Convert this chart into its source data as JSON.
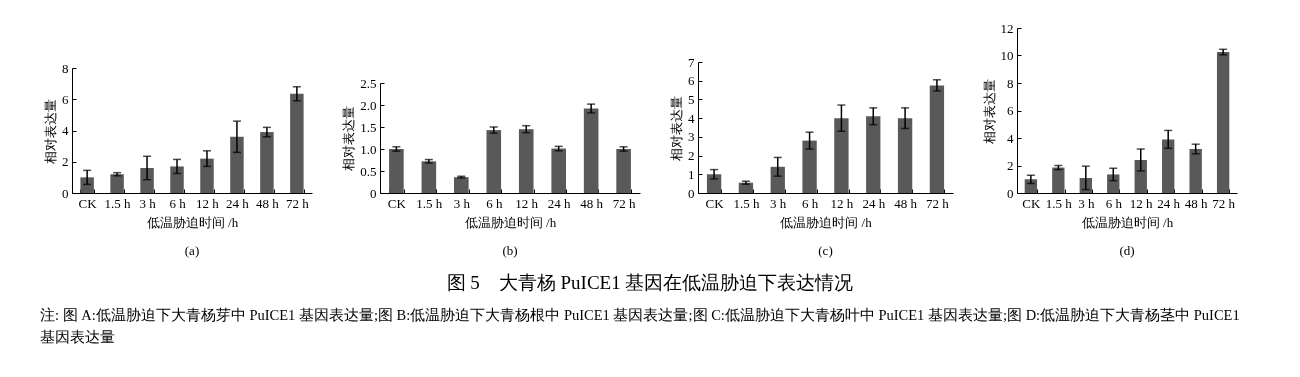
{
  "chart_data": [
    {
      "type": "bar",
      "title": "(a)",
      "xlabel": "低温胁迫时间 /h",
      "ylabel": "相对表达量",
      "categories": [
        "CK",
        "1.5 h",
        "3 h",
        "6 h",
        "12 h",
        "24 h",
        "48 h",
        "72 h"
      ],
      "values": [
        1.0,
        1.2,
        1.6,
        1.7,
        2.2,
        3.6,
        3.9,
        6.35
      ],
      "errors": [
        0.45,
        0.1,
        0.75,
        0.45,
        0.5,
        1.0,
        0.3,
        0.45
      ],
      "color": "#595959",
      "ylim": [
        0,
        8
      ],
      "yticks": [
        0,
        2,
        4,
        6,
        8
      ],
      "grid": false,
      "annotations": [
        "图 5　大青杨 PuICE1 基因在低温胁迫下表达情况",
        "注: 图 A:低温胁迫下大青杨芽中 PuICE1 基因表达量;图 B:低温胁迫下大青杨根中 PuICE1 基因表达量;图 C:低温胁迫下大青杨叶中 PuICE1 基因表达量;图 D:低温胁迫下大青杨茎中 PuICE1 基因表达量"
      ]
    },
    {
      "type": "bar",
      "title": "(b)",
      "xlabel": "低温胁迫时间 /h",
      "ylabel": "相对表达量",
      "categories": [
        "CK",
        "1.5 h",
        "3 h",
        "6 h",
        "12 h",
        "24 h",
        "48 h",
        "72 h"
      ],
      "values": [
        1.0,
        0.72,
        0.36,
        1.43,
        1.45,
        1.01,
        1.92,
        1.0
      ],
      "errors": [
        0.05,
        0.04,
        0.02,
        0.07,
        0.08,
        0.05,
        0.1,
        0.05
      ],
      "color": "#595959",
      "ylim": [
        0,
        2.5
      ],
      "yticks": [
        0,
        {
          "value": 0.5,
          "label": "0.5"
        },
        {
          "value": 1,
          "label": "1.0"
        },
        {
          "value": 1.5,
          "label": "1.5"
        },
        {
          "value": 2,
          "label": "2.0"
        },
        {
          "value": 2.5,
          "label": "2.5"
        }
      ],
      "grid": false
    },
    {
      "type": "bar",
      "title": "(c)",
      "xlabel": "低温胁迫时间 /h",
      "ylabel": "相对表达量",
      "categories": [
        "CK",
        "1.5 h",
        "3 h",
        "6 h",
        "12 h",
        "24 h",
        "48 h",
        "72 h"
      ],
      "values": [
        1.0,
        0.55,
        1.4,
        2.8,
        4.0,
        4.1,
        4.0,
        5.75
      ],
      "errors": [
        0.25,
        0.08,
        0.5,
        0.45,
        0.7,
        0.45,
        0.55,
        0.3
      ],
      "color": "#595959",
      "ylim": [
        0,
        7
      ],
      "yticks": [
        0,
        1,
        2,
        3,
        4,
        5,
        6,
        7
      ],
      "grid": false
    },
    {
      "type": "bar",
      "title": "(d)",
      "xlabel": "低温胁迫时间 /h",
      "ylabel": "相对表达量",
      "categories": [
        "CK",
        "1.5 h",
        "3 h",
        "6 h",
        "12 h",
        "24 h",
        "48 h",
        "72 h"
      ],
      "values": [
        1.0,
        1.85,
        1.1,
        1.35,
        2.4,
        3.9,
        3.2,
        10.25
      ],
      "errors": [
        0.3,
        0.15,
        0.85,
        0.45,
        0.8,
        0.65,
        0.35,
        0.2
      ],
      "color": "#595959",
      "ylim": [
        0,
        12
      ],
      "yticks": [
        0,
        2,
        4,
        6,
        8,
        10,
        12
      ],
      "grid": false
    }
  ]
}
